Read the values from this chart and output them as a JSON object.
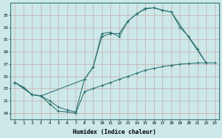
{
  "bg_color": "#cce8e8",
  "grid_color": "#b0d4d4",
  "line_color": "#2d7070",
  "xlabel": "Humidex (Indice chaleur)",
  "xlim": [
    -0.5,
    23.5
  ],
  "ylim": [
    18.0,
    37.0
  ],
  "yticks": [
    19,
    21,
    23,
    25,
    27,
    29,
    31,
    33,
    35
  ],
  "xticks": [
    0,
    1,
    2,
    3,
    4,
    5,
    6,
    7,
    8,
    9,
    10,
    11,
    12,
    13,
    14,
    15,
    16,
    17,
    18,
    19,
    20,
    21,
    22,
    23
  ],
  "line_top_x": [
    0,
    1,
    2,
    3,
    4,
    5,
    6,
    7,
    8,
    9,
    10,
    11,
    12,
    13,
    14,
    15,
    16,
    17,
    18,
    22
  ],
  "line_top_y": [
    24.0,
    23.2,
    22.0,
    21.8,
    21.0,
    20.0,
    19.5,
    19.2,
    24.5,
    26.5,
    32.0,
    32.2,
    31.5,
    34.0,
    35.2,
    36.1,
    36.2,
    35.8,
    35.5,
    27.2
  ],
  "line_mid_x": [
    0,
    2,
    3,
    8,
    9,
    10,
    11,
    12,
    13,
    14,
    15,
    16,
    17,
    18,
    19,
    20,
    21,
    22,
    23
  ],
  "line_mid_y": [
    24.0,
    22.0,
    21.8,
    24.5,
    26.5,
    31.5,
    32.0,
    32.0,
    34.0,
    35.2,
    36.0,
    36.2,
    35.8,
    35.5,
    33.0,
    31.5,
    29.5,
    27.2,
    null
  ],
  "line_bot_x": [
    0,
    1,
    2,
    3,
    4,
    5,
    6,
    7,
    8,
    9,
    10,
    11,
    12,
    13,
    14,
    15,
    16,
    17,
    18,
    19,
    20,
    21,
    22,
    23
  ],
  "line_bot_y": [
    24.0,
    23.2,
    22.0,
    21.8,
    20.5,
    19.3,
    19.2,
    19.0,
    22.5,
    23.0,
    23.5,
    24.0,
    24.5,
    25.0,
    25.5,
    26.0,
    26.3,
    26.6,
    26.8,
    27.0,
    27.1,
    27.2,
    27.2,
    27.2
  ]
}
